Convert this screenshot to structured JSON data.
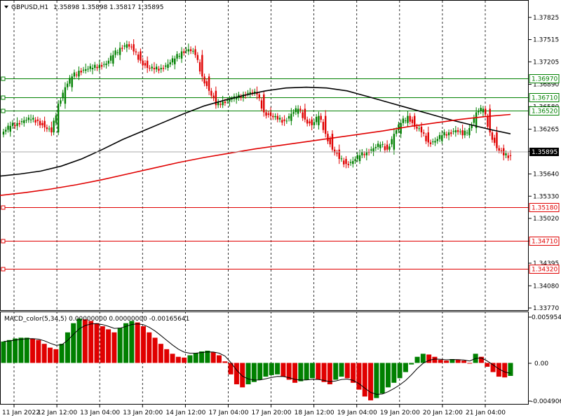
{
  "chart_data": {
    "type": "candlestick",
    "symbol_header": "GBPUSD,H1",
    "ohlc_header": "1.35898 1.35898 1.35817 1.35895",
    "price_axis_ticks": [
      "1.37825",
      "1.37515",
      "1.37205",
      "1.36890",
      "1.36580",
      "1.36265",
      "1.35955",
      "1.35640",
      "1.35330",
      "1.35020",
      "1.34705",
      "1.34395",
      "1.34080",
      "1.33770"
    ],
    "price_range": [
      1.3377,
      1.3795
    ],
    "time_labels": [
      "11 Jan 2022",
      "12 Jan 12:00",
      "13 Jan 04:00",
      "13 Jan 20:00",
      "14 Jan 12:00",
      "17 Jan 04:00",
      "17 Jan 20:00",
      "18 Jan 12:00",
      "19 Jan 04:00",
      "19 Jan 20:00",
      "20 Jan 12:00",
      "21 Jan 04:00"
    ],
    "current_price": "1.35895",
    "levels": [
      {
        "value": "1.36970",
        "color": "#008000"
      },
      {
        "value": "1.36710",
        "color": "#008000"
      },
      {
        "value": "1.36520",
        "color": "#008000"
      },
      {
        "value": "1.35180",
        "color": "#e00000"
      },
      {
        "value": "1.34710",
        "color": "#e00000"
      },
      {
        "value": "1.34320",
        "color": "#e00000"
      }
    ],
    "close_series": [
      1.3623,
      1.3631,
      1.3635,
      1.3639,
      1.364,
      1.3638,
      1.3629,
      1.3622,
      1.3662,
      1.3685,
      1.37,
      1.3708,
      1.371,
      1.3712,
      1.3716,
      1.3718,
      1.373,
      1.374,
      1.3745,
      1.3735,
      1.3722,
      1.3712,
      1.371,
      1.3712,
      1.3717,
      1.3725,
      1.3735,
      1.3738,
      1.373,
      1.37,
      1.368,
      1.366,
      1.3665,
      1.3668,
      1.367,
      1.3675,
      1.3678,
      1.3675,
      1.365,
      1.3645,
      1.364,
      1.3638,
      1.3648,
      1.3655,
      1.364,
      1.3632,
      1.3645,
      1.362,
      1.3598,
      1.3585,
      1.3578,
      1.3582,
      1.359,
      1.3595,
      1.36,
      1.3605,
      1.3598,
      1.362,
      1.3635,
      1.3645,
      1.363,
      1.3622,
      1.3608,
      1.361,
      1.3618,
      1.3622,
      1.3625,
      1.3618,
      1.3628,
      1.365,
      1.3655,
      1.3622,
      1.36,
      1.359,
      1.3589
    ],
    "sma_black": [
      1.3561,
      1.3564,
      1.3568,
      1.3575,
      1.3585,
      1.3598,
      1.3612,
      1.3624,
      1.3636,
      1.3648,
      1.3659,
      1.3667,
      1.3674,
      1.368,
      1.3684,
      1.3685,
      1.3684,
      1.368,
      1.3672,
      1.3664,
      1.3656,
      1.3648,
      1.364,
      1.3633,
      1.3626,
      1.362
    ],
    "sma_red": [
      1.3534,
      1.3538,
      1.3543,
      1.3549,
      1.3556,
      1.3564,
      1.3572,
      1.358,
      1.3587,
      1.3593,
      1.3599,
      1.3604,
      1.3609,
      1.3614,
      1.3619,
      1.3624,
      1.363,
      1.3635,
      1.364,
      1.3644,
      1.3647
    ],
    "macd_header": "MACD_color(5,34,5) 0.00000000 0.00000000 -0.00165641",
    "macd_axis_ticks": [
      "0.0059544",
      "0.00",
      "-0.004906"
    ],
    "macd_range": [
      -0.005,
      0.006
    ],
    "macd_histogram": [
      0.0028,
      0.003,
      0.0032,
      0.0033,
      0.0033,
      0.0032,
      0.003,
      0.0025,
      0.002,
      0.0018,
      0.0025,
      0.004,
      0.0052,
      0.0058,
      0.0057,
      0.0055,
      0.0052,
      0.0048,
      0.0044,
      0.004,
      0.0046,
      0.0052,
      0.0055,
      0.0053,
      0.0048,
      0.004,
      0.0033,
      0.0025,
      0.0018,
      0.0012,
      0.0008,
      0.0007,
      0.001,
      0.0013,
      0.0015,
      0.0016,
      0.0014,
      0.001,
      0.0002,
      -0.0015,
      -0.0028,
      -0.0032,
      -0.0028,
      -0.0025,
      -0.0022,
      -0.0018,
      -0.0016,
      -0.0015,
      -0.0018,
      -0.0022,
      -0.0026,
      -0.0024,
      -0.0022,
      -0.002,
      -0.0022,
      -0.0025,
      -0.0028,
      -0.0022,
      -0.0018,
      -0.002,
      -0.0026,
      -0.0035,
      -0.0044,
      -0.0049,
      -0.0046,
      -0.004,
      -0.0032,
      -0.0026,
      -0.002,
      -0.0012,
      -0.0002,
      0.0008,
      0.0012,
      0.0011,
      0.0008,
      0.0004,
      0.0003,
      0.0005,
      0.0004,
      0.0003,
      0.0,
      0.0012,
      0.0008,
      -0.0005,
      -0.0012,
      -0.0018,
      -0.0019,
      -0.0017
    ],
    "colors": {
      "bull": "#008000",
      "bear": "#e00000",
      "sma_fast": "#000000",
      "sma_slow": "#e00000",
      "grid": "#000000",
      "price_box": "#000000"
    }
  }
}
